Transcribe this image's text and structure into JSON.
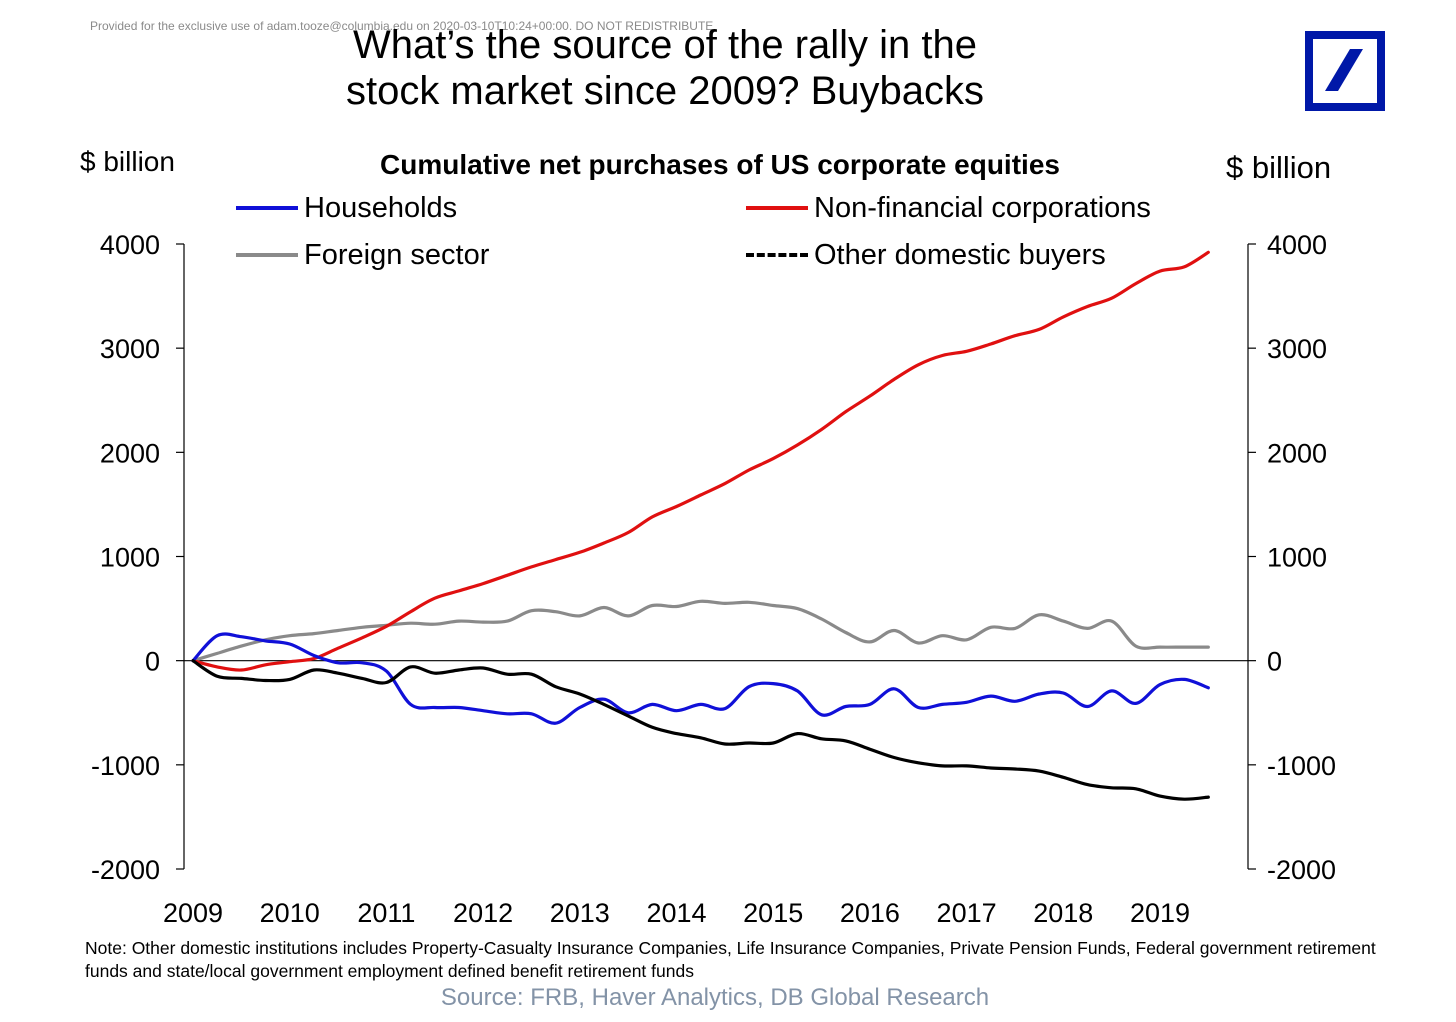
{
  "watermark": "Provided for the exclusive use of adam.tooze@columbia.edu on 2020-03-10T10:24+00:00. DO NOT REDISTRIBUTE",
  "title_line1": "What’s the source of the rally in the",
  "title_line2": "stock market since 2009? Buybacks",
  "colors": {
    "households": "#1010d8",
    "nonfinancial": "#e01010",
    "foreign": "#8a8a8a",
    "other": "#000000",
    "logo": "#0018a8",
    "source": "#8393a7"
  },
  "chart_data": {
    "type": "line",
    "title": "Cumulative net purchases of US corporate equities",
    "ylabel_left": "$ billion",
    "ylabel_right": "$ billion",
    "ylim": [
      -2000,
      4000
    ],
    "yticks": [
      "4000",
      "3000",
      "2000",
      "1000",
      "0",
      "-1000",
      "-2000"
    ],
    "ytick_values": [
      4000,
      3000,
      2000,
      1000,
      0,
      -1000,
      -2000
    ],
    "xlim": [
      2009.0,
      2020.0
    ],
    "xticks": [
      "2009",
      "2010",
      "2011",
      "2012",
      "2013",
      "2014",
      "2015",
      "2016",
      "2017",
      "2018",
      "2019"
    ],
    "xtick_values": [
      2009,
      2010,
      2011,
      2012,
      2013,
      2014,
      2015,
      2016,
      2017,
      2018,
      2019
    ],
    "series": [
      {
        "name": "Households",
        "key": "households",
        "x": [
          2009.0,
          2009.25,
          2009.5,
          2009.75,
          2010.0,
          2010.25,
          2010.5,
          2010.75,
          2011.0,
          2011.25,
          2011.5,
          2011.75,
          2012.0,
          2012.25,
          2012.5,
          2012.75,
          2013.0,
          2013.25,
          2013.5,
          2013.75,
          2014.0,
          2014.25,
          2014.5,
          2014.75,
          2015.0,
          2015.25,
          2015.5,
          2015.75,
          2016.0,
          2016.25,
          2016.5,
          2016.75,
          2017.0,
          2017.25,
          2017.5,
          2017.75,
          2018.0,
          2018.25,
          2018.5,
          2018.75,
          2019.0,
          2019.25,
          2019.5
        ],
        "values": [
          0,
          240,
          230,
          190,
          160,
          50,
          -20,
          -20,
          -100,
          -420,
          -450,
          -450,
          -480,
          -510,
          -510,
          -600,
          -450,
          -370,
          -500,
          -420,
          -480,
          -420,
          -460,
          -250,
          -220,
          -290,
          -520,
          -440,
          -420,
          -270,
          -450,
          -420,
          -400,
          -340,
          -390,
          -320,
          -310,
          -440,
          -290,
          -410,
          -230,
          -180,
          -260
        ]
      },
      {
        "name": "Non-financial corporations",
        "key": "nonfinancial",
        "x": [
          2009.0,
          2009.25,
          2009.5,
          2009.75,
          2010.0,
          2010.25,
          2010.5,
          2010.75,
          2011.0,
          2011.25,
          2011.5,
          2011.75,
          2012.0,
          2012.25,
          2012.5,
          2012.75,
          2013.0,
          2013.25,
          2013.5,
          2013.75,
          2014.0,
          2014.25,
          2014.5,
          2014.75,
          2015.0,
          2015.25,
          2015.5,
          2015.75,
          2016.0,
          2016.25,
          2016.5,
          2016.75,
          2017.0,
          2017.25,
          2017.5,
          2017.75,
          2018.0,
          2018.25,
          2018.5,
          2018.75,
          2019.0,
          2019.25,
          2019.5
        ],
        "values": [
          0,
          -60,
          -90,
          -40,
          -10,
          20,
          120,
          220,
          330,
          470,
          600,
          670,
          740,
          820,
          900,
          970,
          1040,
          1130,
          1230,
          1380,
          1480,
          1590,
          1700,
          1830,
          1940,
          2070,
          2220,
          2390,
          2540,
          2700,
          2840,
          2930,
          2970,
          3040,
          3120,
          3180,
          3300,
          3400,
          3480,
          3620,
          3740,
          3780,
          3920
        ]
      },
      {
        "name": "Foreign sector",
        "key": "foreign",
        "x": [
          2009.0,
          2009.25,
          2009.5,
          2009.75,
          2010.0,
          2010.25,
          2010.5,
          2010.75,
          2011.0,
          2011.25,
          2011.5,
          2011.75,
          2012.0,
          2012.25,
          2012.5,
          2012.75,
          2013.0,
          2013.25,
          2013.5,
          2013.75,
          2014.0,
          2014.25,
          2014.5,
          2014.75,
          2015.0,
          2015.25,
          2015.5,
          2015.75,
          2016.0,
          2016.25,
          2016.5,
          2016.75,
          2017.0,
          2017.25,
          2017.5,
          2017.75,
          2018.0,
          2018.25,
          2018.5,
          2018.75,
          2019.0,
          2019.25,
          2019.5
        ],
        "values": [
          0,
          70,
          140,
          200,
          240,
          260,
          290,
          320,
          340,
          360,
          350,
          380,
          370,
          380,
          480,
          470,
          430,
          510,
          430,
          530,
          520,
          570,
          550,
          560,
          530,
          500,
          400,
          270,
          180,
          290,
          170,
          240,
          200,
          320,
          310,
          440,
          380,
          310,
          380,
          140,
          130,
          130,
          130
        ]
      },
      {
        "name": "Other domestic buyers",
        "key": "other",
        "x": [
          2009.0,
          2009.25,
          2009.5,
          2009.75,
          2010.0,
          2010.25,
          2010.5,
          2010.75,
          2011.0,
          2011.25,
          2011.5,
          2011.75,
          2012.0,
          2012.25,
          2012.5,
          2012.75,
          2013.0,
          2013.25,
          2013.5,
          2013.75,
          2014.0,
          2014.25,
          2014.5,
          2014.75,
          2015.0,
          2015.25,
          2015.5,
          2015.75,
          2016.0,
          2016.25,
          2016.5,
          2016.75,
          2017.0,
          2017.25,
          2017.5,
          2017.75,
          2018.0,
          2018.25,
          2018.5,
          2018.75,
          2019.0,
          2019.25,
          2019.5
        ],
        "values": [
          0,
          -150,
          -170,
          -190,
          -180,
          -90,
          -120,
          -170,
          -210,
          -60,
          -120,
          -90,
          -70,
          -130,
          -130,
          -250,
          -320,
          -420,
          -530,
          -640,
          -700,
          -740,
          -800,
          -790,
          -790,
          -700,
          -750,
          -770,
          -850,
          -930,
          -980,
          -1010,
          -1010,
          -1030,
          -1040,
          -1060,
          -1120,
          -1190,
          -1220,
          -1230,
          -1300,
          -1330,
          -1310
        ]
      }
    ]
  },
  "note": "Note: Other domestic institutions includes Property-Casualty Insurance Companies, Life Insurance Companies, Private Pension Funds, Federal government retirement funds and state/local government employment defined benefit retirement funds",
  "source": "Source: FRB, Haver Analytics, DB Global Research"
}
